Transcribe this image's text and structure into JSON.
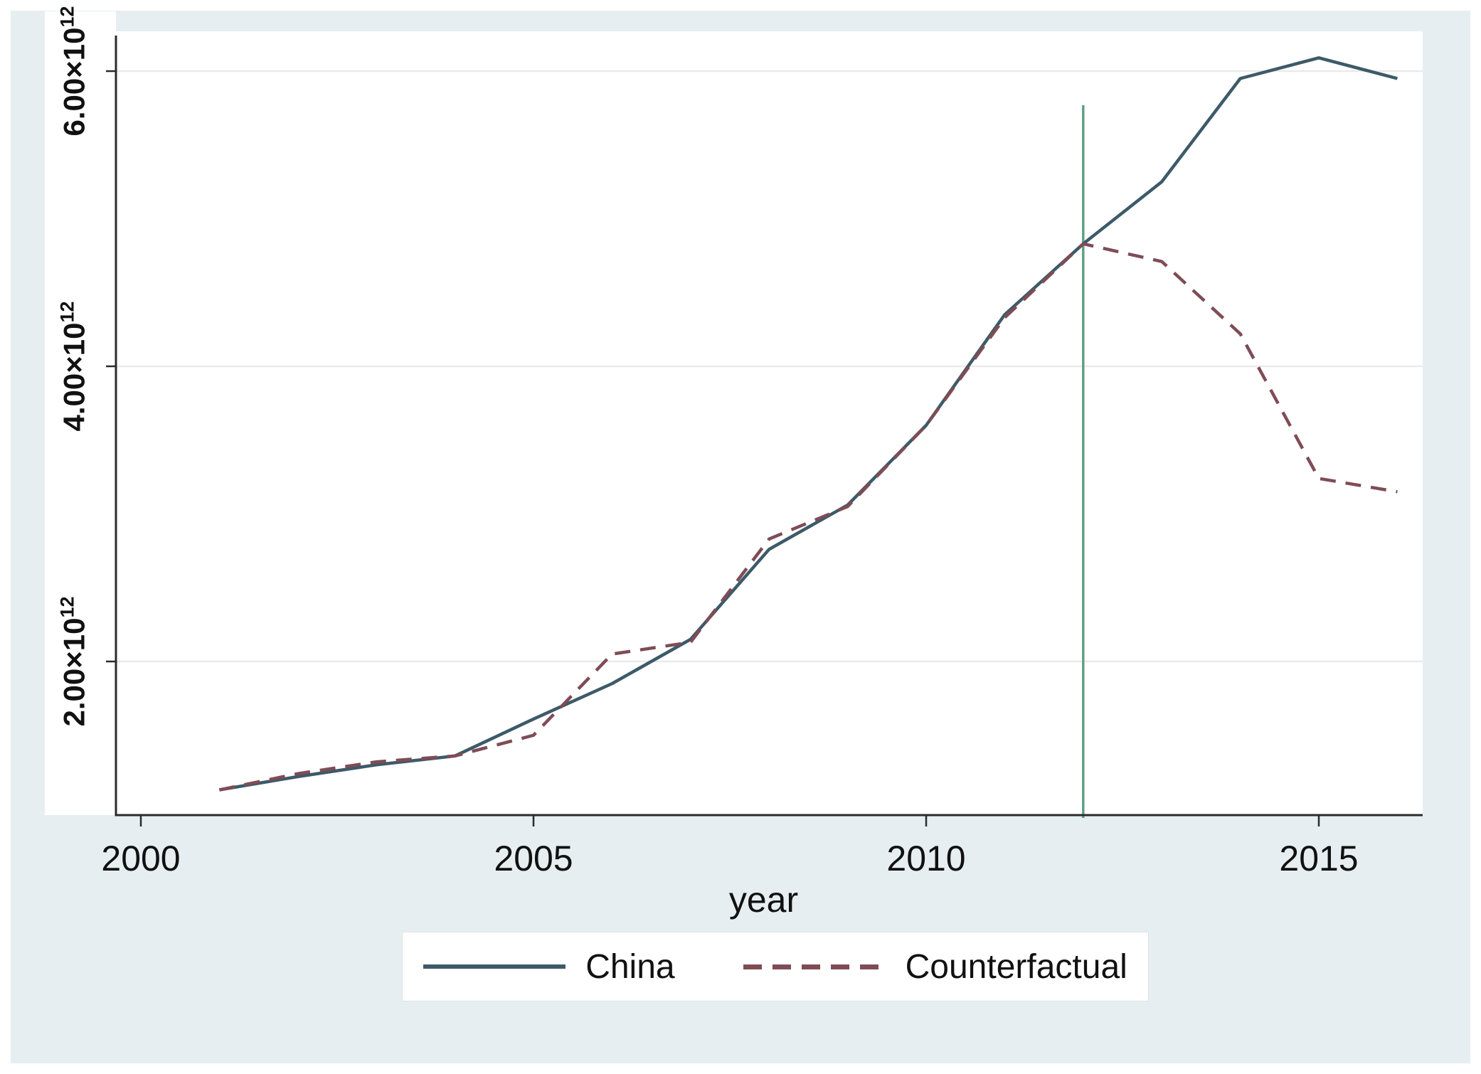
{
  "figure": {
    "canvas_color": "#e6eef1",
    "plot_bg_color": "#ffffff",
    "grid_color": "#eaeaea",
    "axis_color": "#2b2b2b",
    "text_color": "#111111"
  },
  "chart_data": {
    "type": "line",
    "title": "",
    "xlabel": "year",
    "ylabel": "",
    "grid": "horizontal",
    "legend_position": "bottom",
    "x_ticks": [
      2000,
      2005,
      2010,
      2015
    ],
    "y_ticks": [
      {
        "label_base": "2.00×10",
        "label_exp": "12",
        "value": 2.0
      },
      {
        "label_base": "4.00×10",
        "label_exp": "12",
        "value": 4.0
      },
      {
        "label_base": "6.00×10",
        "label_exp": "12",
        "value": 6.0
      }
    ],
    "y_unit": "x10^12",
    "xlim": [
      1999.7,
      2016.3
    ],
    "ylim": [
      0.96,
      6.27
    ],
    "x": [
      2001,
      2002,
      2003,
      2004,
      2005,
      2006,
      2007,
      2008,
      2009,
      2010,
      2011,
      2012,
      2013,
      2014,
      2015,
      2016
    ],
    "series": [
      {
        "name": "China",
        "style": "solid",
        "color": "#3d5a68",
        "values": [
          1.13,
          1.22,
          1.3,
          1.36,
          1.61,
          1.85,
          2.15,
          2.76,
          3.06,
          3.6,
          4.35,
          4.83,
          5.25,
          5.95,
          6.09,
          5.95
        ]
      },
      {
        "name": "Counterfactual",
        "style": "dashed",
        "color": "#7f4c55",
        "values": [
          1.13,
          1.24,
          1.32,
          1.36,
          1.5,
          2.05,
          2.13,
          2.83,
          3.05,
          3.6,
          4.33,
          4.83,
          4.71,
          4.22,
          3.24,
          3.15
        ]
      }
    ],
    "reference_line": {
      "axis": "x",
      "value": 2012,
      "color": "#60a084"
    }
  }
}
